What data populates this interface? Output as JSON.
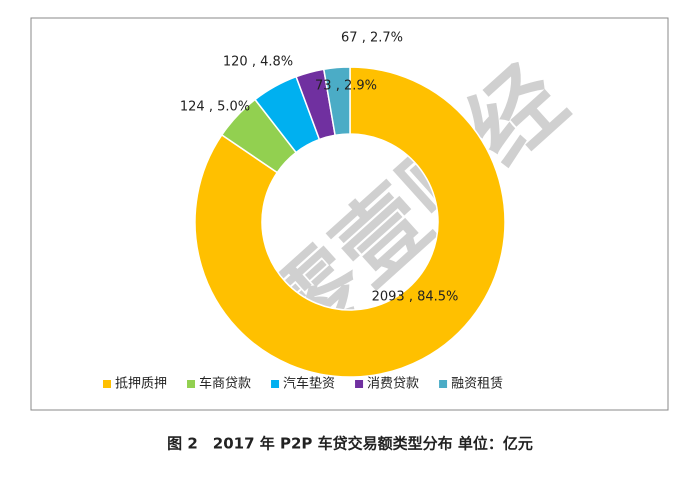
{
  "chart_data": {
    "type": "donut",
    "title": "图 2　2017 年 P2P 车贷交易额类型分布  单位：亿元",
    "watermark": "零壹财经",
    "categories": [
      "抵押质押",
      "车商贷款",
      "汽车垫资",
      "消费贷款",
      "融资租赁"
    ],
    "values": [
      2093,
      124,
      120,
      73,
      67
    ],
    "value_labels": [
      "2093 , 84.5%",
      "124 , 5.0%",
      "120 , 4.8%",
      "73 , 2.9%",
      "67 , 2.7%"
    ],
    "colors": [
      "#FFC000",
      "#92D050",
      "#00B0F0",
      "#7030A0",
      "#4BACC6"
    ],
    "legend": "bottom"
  }
}
